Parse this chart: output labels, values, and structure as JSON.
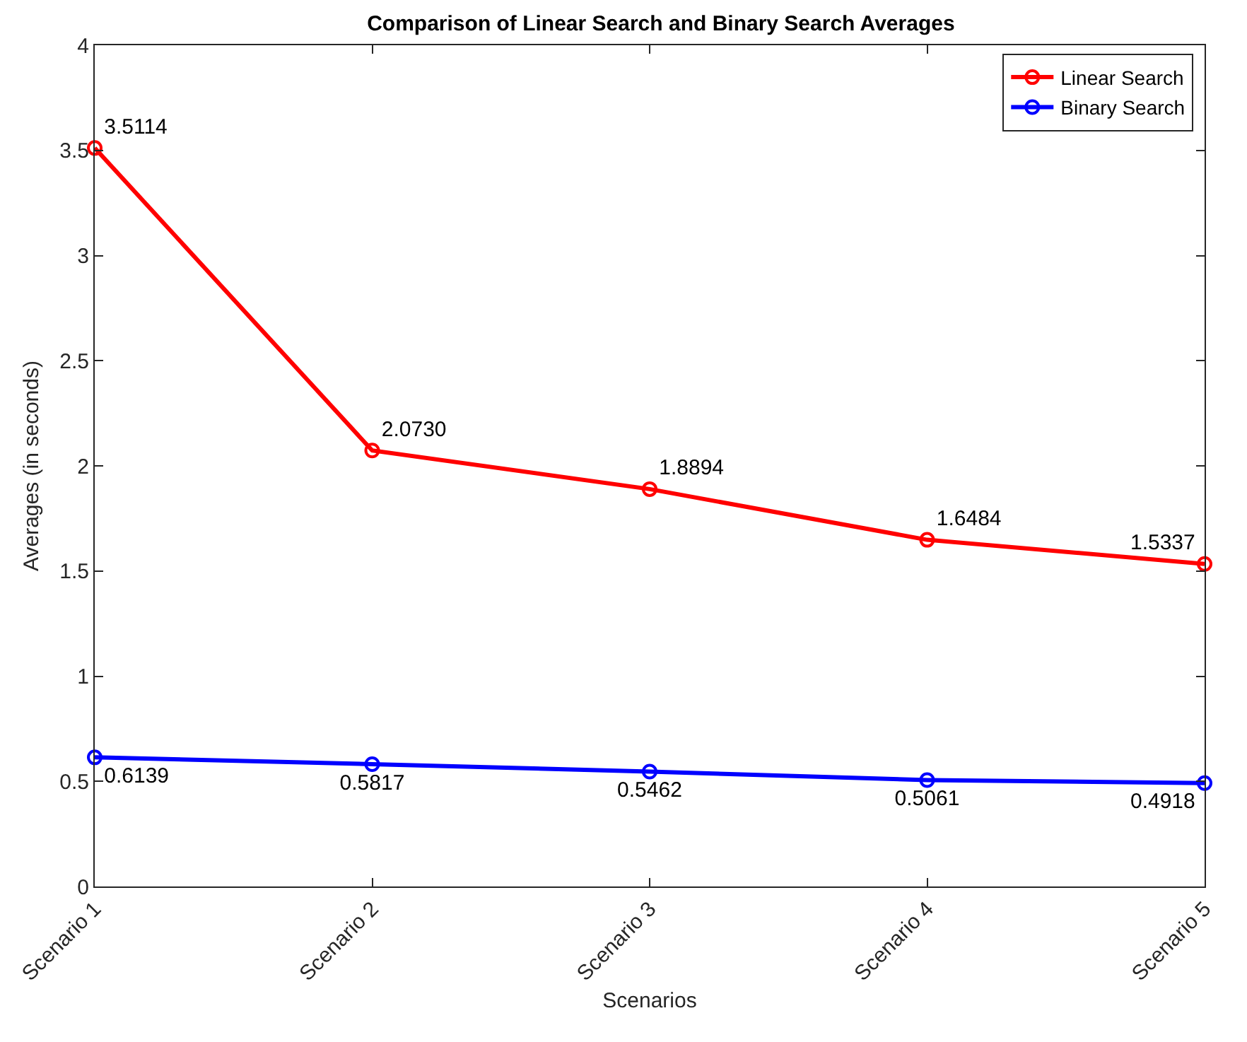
{
  "chart_data": {
    "type": "line",
    "title": "Comparison of Linear Search and Binary Search Averages",
    "xlabel": "Scenarios",
    "ylabel": "Averages (in seconds)",
    "categories": [
      "Scenario 1",
      "Scenario 2",
      "Scenario 3",
      "Scenario 4",
      "Scenario 5"
    ],
    "series": [
      {
        "name": "Linear Search",
        "color": "#ff0000",
        "values": [
          3.5114,
          2.073,
          1.8894,
          1.6484,
          1.5337
        ],
        "value_labels": [
          "3.5114",
          "2.0730",
          "1.8894",
          "1.6484",
          "1.5337"
        ]
      },
      {
        "name": "Binary Search",
        "color": "#0000ff",
        "values": [
          0.6139,
          0.5817,
          0.5462,
          0.5061,
          0.4918
        ],
        "value_labels": [
          "0.6139",
          "0.5817",
          "0.5462",
          "0.5061",
          "0.4918"
        ]
      }
    ],
    "ylim": [
      0,
      4
    ],
    "yticks": [
      0,
      0.5,
      1,
      1.5,
      2,
      2.5,
      3,
      3.5,
      4
    ],
    "grid": false,
    "legend": "top right",
    "marker": "circle",
    "line_style": "solid"
  }
}
